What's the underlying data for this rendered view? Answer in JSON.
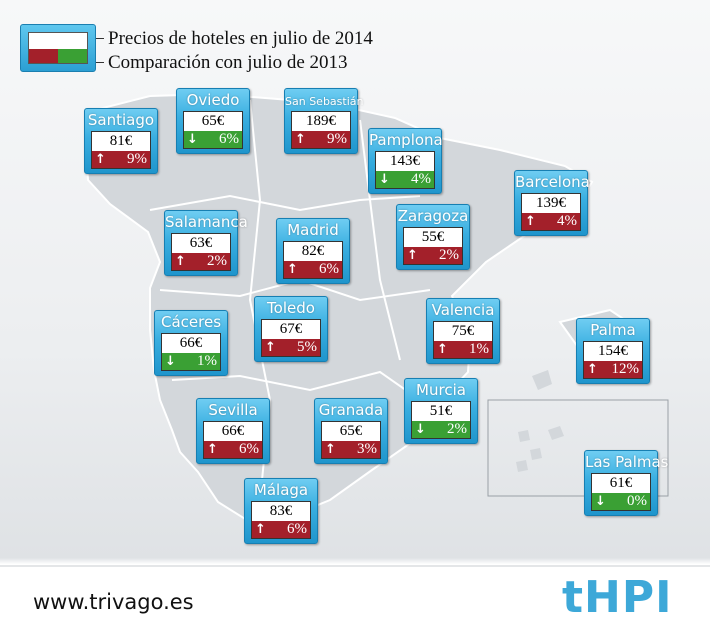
{
  "legend": {
    "current_label": "Precios de hoteles en julio de 2014",
    "comparison_label": "Comparación con julio de 2013",
    "up_color": "#a3202a",
    "down_color": "#3aa034"
  },
  "cities": [
    {
      "name": "Santiago",
      "price": "81€",
      "change": "9%",
      "direction": "up"
    },
    {
      "name": "Oviedo",
      "price": "65€",
      "change": "6%",
      "direction": "down"
    },
    {
      "name": "San Sebastián",
      "price": "189€",
      "change": "9%",
      "direction": "up"
    },
    {
      "name": "Pamplona",
      "price": "143€",
      "change": "4%",
      "direction": "down"
    },
    {
      "name": "Barcelona",
      "price": "139€",
      "change": "4%",
      "direction": "up"
    },
    {
      "name": "Salamanca",
      "price": "63€",
      "change": "2%",
      "direction": "up"
    },
    {
      "name": "Madrid",
      "price": "82€",
      "change": "6%",
      "direction": "up"
    },
    {
      "name": "Zaragoza",
      "price": "55€",
      "change": "2%",
      "direction": "up"
    },
    {
      "name": "Cáceres",
      "price": "66€",
      "change": "1%",
      "direction": "down"
    },
    {
      "name": "Toledo",
      "price": "67€",
      "change": "5%",
      "direction": "up"
    },
    {
      "name": "Valencia",
      "price": "75€",
      "change": "1%",
      "direction": "up"
    },
    {
      "name": "Palma",
      "price": "154€",
      "change": "12%",
      "direction": "up"
    },
    {
      "name": "Sevilla",
      "price": "66€",
      "change": "6%",
      "direction": "up"
    },
    {
      "name": "Granada",
      "price": "65€",
      "change": "3%",
      "direction": "up"
    },
    {
      "name": "Murcia",
      "price": "51€",
      "change": "2%",
      "direction": "down"
    },
    {
      "name": "Las Palmas",
      "price": "61€",
      "change": "0%",
      "direction": "down"
    },
    {
      "name": "Málaga",
      "price": "83€",
      "change": "6%",
      "direction": "up"
    }
  ],
  "icons": {
    "up": "arrow-up-icon",
    "down": "arrow-down-icon"
  },
  "footer": {
    "url": "www.trivago.es",
    "logo": "tHPI"
  }
}
